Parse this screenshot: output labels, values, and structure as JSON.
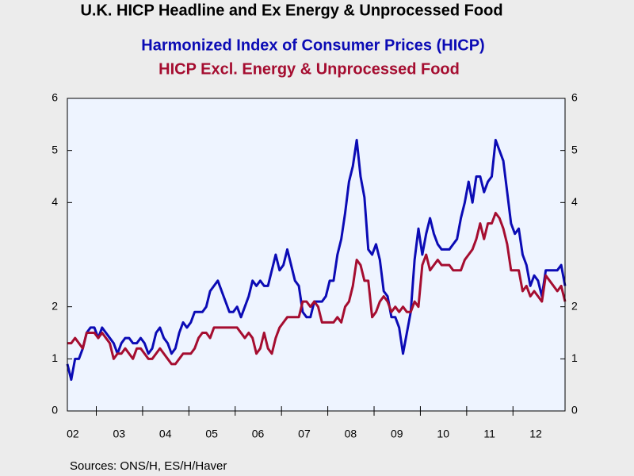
{
  "chart_data": {
    "type": "line",
    "title": "U.K. HICP Headline and Ex Energy & Unprocessed Food",
    "source": "Sources:  ONS/H, ES/H/Haver",
    "categories": [
      null,
      "02",
      null,
      null,
      null,
      null,
      null,
      null,
      null,
      null,
      null,
      null,
      null,
      "03",
      null,
      null,
      null,
      null,
      null,
      null,
      null,
      null,
      null,
      null,
      null,
      "04",
      null,
      null,
      null,
      null,
      null,
      null,
      null,
      null,
      null,
      null,
      null,
      "05",
      null,
      null,
      null,
      null,
      null,
      null,
      null,
      null,
      null,
      null,
      null,
      "06",
      null,
      null,
      null,
      null,
      null,
      null,
      null,
      null,
      null,
      null,
      null,
      "07",
      null,
      null,
      null,
      null,
      null,
      null,
      null,
      null,
      null,
      null,
      null,
      "08",
      null,
      null,
      null,
      null,
      null,
      null,
      null,
      null,
      null,
      null,
      null,
      "09",
      null,
      null,
      null,
      null,
      null,
      null,
      null,
      null,
      null,
      null,
      null,
      "10",
      null,
      null,
      null,
      null,
      null,
      null,
      null,
      null,
      null,
      null,
      null,
      "11",
      null,
      null,
      null,
      null,
      null,
      null,
      null,
      null,
      null,
      null,
      null,
      "12",
      null,
      null,
      null,
      null,
      null,
      null,
      null,
      null
    ],
    "series": [
      {
        "name": "Harmonized Index of Consumer Prices (HICP)",
        "color": "#0b0bb5",
        "values": [
          0.9,
          0.6,
          1.0,
          1.0,
          1.2,
          1.5,
          1.6,
          1.6,
          1.4,
          1.6,
          1.5,
          1.4,
          1.3,
          1.1,
          1.3,
          1.4,
          1.4,
          1.3,
          1.3,
          1.4,
          1.3,
          1.1,
          1.2,
          1.5,
          1.6,
          1.4,
          1.3,
          1.1,
          1.2,
          1.5,
          1.7,
          1.6,
          1.7,
          1.9,
          1.9,
          1.9,
          2.0,
          2.3,
          2.4,
          2.5,
          2.3,
          2.1,
          1.9,
          1.9,
          2.0,
          1.8,
          2.0,
          2.2,
          2.5,
          2.4,
          2.5,
          2.4,
          2.4,
          2.7,
          3.0,
          2.7,
          2.8,
          3.1,
          2.8,
          2.5,
          2.4,
          1.9,
          1.8,
          1.8,
          2.1,
          2.1,
          2.1,
          2.2,
          2.5,
          2.5,
          3.0,
          3.3,
          3.8,
          4.4,
          4.7,
          5.2,
          4.5,
          4.1,
          3.1,
          3.0,
          3.2,
          2.9,
          2.3,
          2.2,
          1.8,
          1.8,
          1.6,
          1.1,
          1.5,
          1.9,
          2.9,
          3.5,
          3.0,
          3.4,
          3.7,
          3.4,
          3.2,
          3.1,
          3.1,
          3.1,
          3.2,
          3.3,
          3.7,
          4.0,
          4.4,
          4.0,
          4.5,
          4.5,
          4.2,
          4.4,
          4.5,
          5.2,
          5.0,
          4.8,
          4.2,
          3.6,
          3.4,
          3.5,
          3.0,
          2.8,
          2.4,
          2.6,
          2.5,
          2.2,
          2.7,
          2.7,
          2.7,
          2.7,
          2.8,
          2.4
        ]
      },
      {
        "name": "HICP Excl. Energy & Unprocessed Food",
        "color": "#a50d30",
        "values": [
          1.3,
          1.3,
          1.4,
          1.3,
          1.2,
          1.5,
          1.5,
          1.5,
          1.4,
          1.5,
          1.4,
          1.3,
          1.0,
          1.1,
          1.1,
          1.2,
          1.1,
          1.0,
          1.2,
          1.2,
          1.1,
          1.0,
          1.0,
          1.1,
          1.2,
          1.1,
          1.0,
          0.9,
          0.9,
          1.0,
          1.1,
          1.1,
          1.1,
          1.2,
          1.4,
          1.5,
          1.5,
          1.4,
          1.6,
          1.6,
          1.6,
          1.6,
          1.6,
          1.6,
          1.6,
          1.5,
          1.4,
          1.5,
          1.4,
          1.1,
          1.2,
          1.5,
          1.2,
          1.1,
          1.4,
          1.6,
          1.7,
          1.8,
          1.8,
          1.8,
          1.8,
          2.1,
          2.1,
          2.0,
          2.1,
          2.0,
          1.7,
          1.7,
          1.7,
          1.7,
          1.8,
          1.7,
          2.0,
          2.1,
          2.4,
          2.9,
          2.8,
          2.5,
          2.5,
          1.8,
          1.9,
          2.1,
          2.2,
          2.1,
          1.9,
          2.0,
          1.9,
          2.0,
          1.9,
          1.9,
          2.1,
          2.0,
          2.8,
          3.0,
          2.7,
          2.8,
          2.9,
          2.8,
          2.8,
          2.8,
          2.7,
          2.7,
          2.7,
          2.9,
          3.0,
          3.1,
          3.3,
          3.6,
          3.3,
          3.6,
          3.6,
          3.8,
          3.7,
          3.5,
          3.2,
          2.7,
          2.7,
          2.7,
          2.3,
          2.4,
          2.2,
          2.3,
          2.2,
          2.1,
          2.6,
          2.5,
          2.4,
          2.3,
          2.4,
          2.1
        ]
      }
    ],
    "ylim": [
      0,
      6
    ],
    "yticks": [
      0,
      1,
      2,
      4,
      5,
      6
    ],
    "right_axis": true
  }
}
